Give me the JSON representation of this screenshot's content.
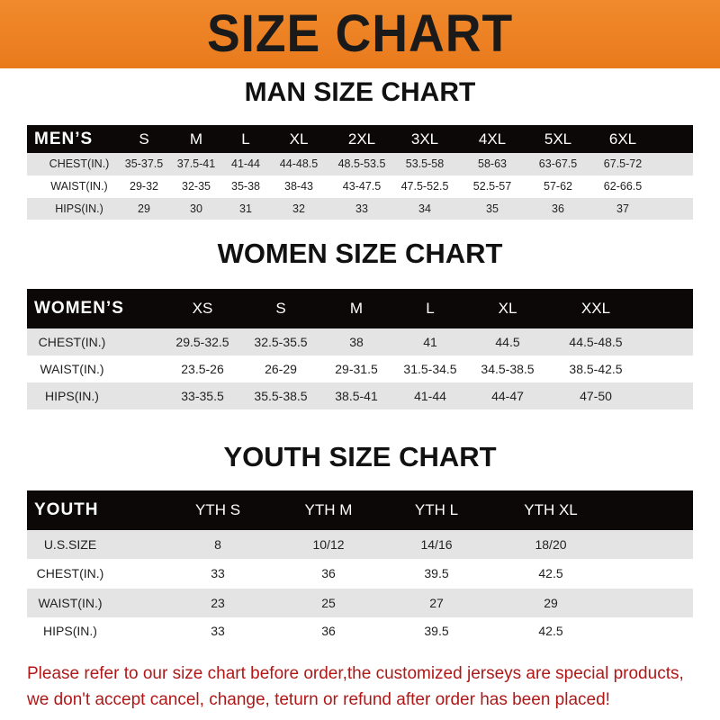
{
  "banner_title": "SIZE CHART",
  "tables": [
    {
      "title": "MAN SIZE CHART",
      "header": [
        "MEN’S",
        "S",
        "M",
        "L",
        "XL",
        "2XL",
        "3XL",
        "4XL",
        "5XL",
        "6XL"
      ],
      "rows": [
        [
          "CHEST(IN.)",
          "35-37.5",
          "37.5-41",
          "41-44",
          "44-48.5",
          "48.5-53.5",
          "53.5-58",
          "58-63",
          "63-67.5",
          "67.5-72"
        ],
        [
          "WAIST(IN.)",
          "29-32",
          "32-35",
          "35-38",
          "38-43",
          "43-47.5",
          "47.5-52.5",
          "52.5-57",
          "57-62",
          "62-66.5"
        ],
        [
          "HIPS(IN.)",
          "29",
          "30",
          "31",
          "32",
          "33",
          "34",
          "35",
          "36",
          "37"
        ]
      ]
    },
    {
      "title": "WOMEN SIZE CHART",
      "header": [
        "WOMEN’S",
        "XS",
        "S",
        "M",
        "L",
        "XL",
        "XXL"
      ],
      "rows": [
        [
          "CHEST(IN.)",
          "29.5-32.5",
          "32.5-35.5",
          "38",
          "41",
          "44.5",
          "44.5-48.5"
        ],
        [
          "WAIST(IN.)",
          "23.5-26",
          "26-29",
          "29-31.5",
          "31.5-34.5",
          "34.5-38.5",
          "38.5-42.5"
        ],
        [
          "HIPS(IN.)",
          "33-35.5",
          "35.5-38.5",
          "38.5-41",
          "41-44",
          "44-47",
          "47-50"
        ]
      ]
    },
    {
      "title": "YOUTH SIZE CHART",
      "header": [
        "YOUTH",
        "YTH S",
        "YTH M",
        "YTH L",
        "YTH XL"
      ],
      "rows": [
        [
          "U.S.SIZE",
          "8",
          "10/12",
          "14/16",
          "18/20"
        ],
        [
          "CHEST(IN.)",
          "33",
          "36",
          "39.5",
          "42.5"
        ],
        [
          "WAIST(IN.)",
          "23",
          "25",
          "27",
          "29"
        ],
        [
          "HIPS(IN.)",
          "33",
          "36",
          "39.5",
          "42.5"
        ]
      ]
    }
  ],
  "footer": {
    "line1": "Please refer to our size chart before order,the customized jerseys are special products,",
    "line2": "we don't accept cancel, change, teturn or refund after order has been placed!"
  },
  "colors": {
    "banner": "#ec8026",
    "header_row": "#0c0808",
    "stripe": "#e4e4e4",
    "footer_text": "#b01818"
  }
}
